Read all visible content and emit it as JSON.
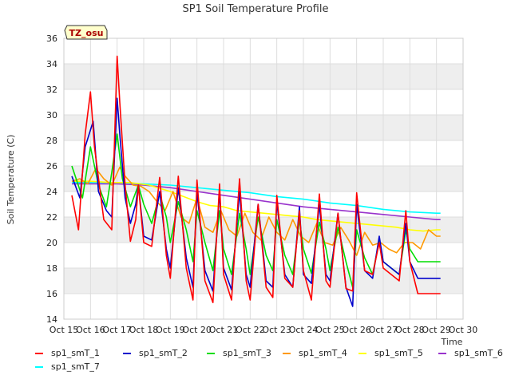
{
  "chart_data": {
    "type": "line",
    "title": "SP1 Soil Temperature Profile",
    "xlabel": "Time",
    "ylabel": "Soil Temperature (C)",
    "ylim": [
      14,
      36
    ],
    "yticks": [
      14,
      16,
      18,
      20,
      22,
      24,
      26,
      28,
      30,
      32,
      34,
      36
    ],
    "xlim": [
      15,
      30
    ],
    "xticks": [
      15,
      16,
      17,
      18,
      19,
      20,
      21,
      22,
      23,
      24,
      25,
      26,
      27,
      28,
      29,
      30
    ],
    "xtick_labels": [
      "Oct 15",
      "Oct 16",
      "Oct 17",
      "Oct 18",
      "Oct 19",
      "Oct 20",
      "Oct 21",
      "Oct 22",
      "Oct 23",
      "Oct 24",
      "Oct 25",
      "Oct 26",
      "Oct 27",
      "Oct 28",
      "Oct 29",
      "Oct 30"
    ],
    "annotation": "TZ_osu",
    "series": [
      {
        "name": "sp1_smT_1",
        "color": "#ff0000",
        "x": [
          15.3,
          15.55,
          15.8,
          16.0,
          16.15,
          16.5,
          16.8,
          17.0,
          17.1,
          17.3,
          17.5,
          17.7,
          17.8,
          18.0,
          18.3,
          18.6,
          18.85,
          19.0,
          19.3,
          19.6,
          19.85,
          20.0,
          20.3,
          20.6,
          20.85,
          21.0,
          21.3,
          21.6,
          21.85,
          22.0,
          22.3,
          22.6,
          22.85,
          23.0,
          23.3,
          23.6,
          23.85,
          24.0,
          24.3,
          24.6,
          24.85,
          25.0,
          25.3,
          25.6,
          25.85,
          26.0,
          26.3,
          26.6,
          26.85,
          27.0,
          27.3,
          27.6,
          27.85,
          28.0,
          28.3,
          28.6,
          28.85,
          29.0,
          29.15
        ],
        "y": [
          23.7,
          21.0,
          28.5,
          31.8,
          27.5,
          21.8,
          21.0,
          34.6,
          31.0,
          24.5,
          20.1,
          21.8,
          24.5,
          20.0,
          19.7,
          25.1,
          19.0,
          17.2,
          25.2,
          18.0,
          15.5,
          24.9,
          17.0,
          15.3,
          24.6,
          17.5,
          15.5,
          25.0,
          17.0,
          15.5,
          23.0,
          16.5,
          15.7,
          23.7,
          17.2,
          16.5,
          22.5,
          17.8,
          15.5,
          23.8,
          17.0,
          16.5,
          22.3,
          16.4,
          16.2,
          23.9,
          17.8,
          17.5,
          20.0,
          18.0,
          17.5,
          17.0,
          22.5,
          18.5,
          16.0,
          16.0,
          16.0,
          16.0,
          16.0
        ]
      },
      {
        "name": "sp1_smT_2",
        "color": "#0000cc",
        "x": [
          15.3,
          15.6,
          15.8,
          16.1,
          16.3,
          16.6,
          16.8,
          17.0,
          17.1,
          17.3,
          17.5,
          17.7,
          17.8,
          18.0,
          18.3,
          18.6,
          18.85,
          19.0,
          19.3,
          19.6,
          19.85,
          20.0,
          20.3,
          20.6,
          20.85,
          21.0,
          21.3,
          21.6,
          21.85,
          22.0,
          22.3,
          22.6,
          22.85,
          23.0,
          23.3,
          23.6,
          23.85,
          24.0,
          24.3,
          24.6,
          24.85,
          25.0,
          25.3,
          25.6,
          25.85,
          26.0,
          26.3,
          26.6,
          26.85,
          27.0,
          27.3,
          27.6,
          27.85,
          28.0,
          28.3,
          28.6,
          28.85,
          29.0,
          29.15
        ],
        "y": [
          25.2,
          23.5,
          27.5,
          29.5,
          24.0,
          22.5,
          22.0,
          31.3,
          28.5,
          23.5,
          21.5,
          23.0,
          24.5,
          20.5,
          20.2,
          24.0,
          19.5,
          18.0,
          24.3,
          18.8,
          16.5,
          24.0,
          17.8,
          16.2,
          24.0,
          18.0,
          16.3,
          24.0,
          17.5,
          16.5,
          23.0,
          17.0,
          16.5,
          23.2,
          17.5,
          16.5,
          22.8,
          17.5,
          16.8,
          23.0,
          17.5,
          17.0,
          22.3,
          16.5,
          15.0,
          23.0,
          17.8,
          17.2,
          20.5,
          18.5,
          18.0,
          17.5,
          21.5,
          18.5,
          17.2,
          17.2,
          17.2,
          17.2,
          17.2
        ]
      },
      {
        "name": "sp1_smT_3",
        "color": "#00dd00",
        "x": [
          15.3,
          15.7,
          16.0,
          16.3,
          16.6,
          16.8,
          17.0,
          17.2,
          17.5,
          17.8,
          18.0,
          18.3,
          18.6,
          18.85,
          19.0,
          19.3,
          19.6,
          19.85,
          20.0,
          20.3,
          20.6,
          20.85,
          21.0,
          21.3,
          21.6,
          21.85,
          22.0,
          22.3,
          22.6,
          22.85,
          23.0,
          23.3,
          23.6,
          23.85,
          24.0,
          24.3,
          24.6,
          24.85,
          25.0,
          25.3,
          25.6,
          25.85,
          26.0,
          26.3,
          26.6,
          26.85,
          27.0,
          27.3,
          27.6,
          27.85,
          28.0,
          28.3,
          28.6,
          28.85,
          29.0,
          29.15
        ],
        "y": [
          26.0,
          23.5,
          27.5,
          24.5,
          22.8,
          25.5,
          28.5,
          25.0,
          22.8,
          24.5,
          23.0,
          21.5,
          23.8,
          22.0,
          20.0,
          23.2,
          21.0,
          18.5,
          22.5,
          20.0,
          17.8,
          22.5,
          19.5,
          17.5,
          22.3,
          19.5,
          17.5,
          22.0,
          19.0,
          17.8,
          21.8,
          19.0,
          17.5,
          21.8,
          19.5,
          17.6,
          21.6,
          19.5,
          17.8,
          21.2,
          18.5,
          16.5,
          21.0,
          18.8,
          17.5,
          20.2,
          18.5,
          18.0,
          17.5,
          21.0,
          19.5,
          18.5,
          18.5,
          18.5,
          18.5,
          18.5
        ]
      },
      {
        "name": "sp1_smT_4",
        "color": "#ff9900",
        "x": [
          15.3,
          15.6,
          15.9,
          16.2,
          16.5,
          16.8,
          17.1,
          17.3,
          17.6,
          17.9,
          18.2,
          18.5,
          18.8,
          19.1,
          19.4,
          19.7,
          20.0,
          20.3,
          20.6,
          20.9,
          21.2,
          21.5,
          21.8,
          22.1,
          22.4,
          22.7,
          23.0,
          23.3,
          23.6,
          23.9,
          24.2,
          24.5,
          24.8,
          25.1,
          25.4,
          25.7,
          26.0,
          26.3,
          26.6,
          26.9,
          27.2,
          27.5,
          27.8,
          28.1,
          28.4,
          28.7,
          29.0,
          29.15
        ],
        "y": [
          24.8,
          25.0,
          24.6,
          25.8,
          25.0,
          24.5,
          25.9,
          25.2,
          24.5,
          24.4,
          24.0,
          23.2,
          22.5,
          24.0,
          22.0,
          21.5,
          23.5,
          21.2,
          20.8,
          22.5,
          21.0,
          20.5,
          22.3,
          20.8,
          20.2,
          22.0,
          20.8,
          20.2,
          21.8,
          20.5,
          20.0,
          21.5,
          20.0,
          19.8,
          21.2,
          20.2,
          19.0,
          20.8,
          19.8,
          20.0,
          19.5,
          19.2,
          20.0,
          20.0,
          19.5,
          21.0,
          20.5,
          20.5
        ]
      },
      {
        "name": "sp1_smT_5",
        "color": "#ffff00",
        "x": [
          15.3,
          16.0,
          16.8,
          17.5,
          18.2,
          19.0,
          19.5,
          20.0,
          20.5,
          21.0,
          21.5,
          22.0,
          22.5,
          23.0,
          23.5,
          24.0,
          24.5,
          25.0,
          25.5,
          26.0,
          26.5,
          27.0,
          27.5,
          28.0,
          28.5,
          29.0,
          29.15
        ],
        "y": [
          24.8,
          24.8,
          24.7,
          24.7,
          24.5,
          24.0,
          23.6,
          23.2,
          22.9,
          22.8,
          22.5,
          22.4,
          22.3,
          22.2,
          22.1,
          22.0,
          21.8,
          21.7,
          21.6,
          21.5,
          21.4,
          21.3,
          21.2,
          21.0,
          20.9,
          21.0,
          21.0
        ]
      },
      {
        "name": "sp1_smT_6",
        "color": "#9933cc",
        "x": [
          15.3,
          16.0,
          17.0,
          18.0,
          19.0,
          20.0,
          21.0,
          22.0,
          23.0,
          24.0,
          25.0,
          26.0,
          27.0,
          28.0,
          29.0,
          29.15
        ],
        "y": [
          24.6,
          24.6,
          24.6,
          24.5,
          24.3,
          24.0,
          23.7,
          23.4,
          23.1,
          22.8,
          22.6,
          22.4,
          22.2,
          22.0,
          21.8,
          21.8
        ]
      },
      {
        "name": "sp1_smT_7",
        "color": "#00ffff",
        "x": [
          15.3,
          16.0,
          17.0,
          18.0,
          19.0,
          20.0,
          21.0,
          22.0,
          23.0,
          24.0,
          25.0,
          26.0,
          27.0,
          28.0,
          29.0,
          29.15
        ],
        "y": [
          24.7,
          24.7,
          24.7,
          24.6,
          24.5,
          24.3,
          24.1,
          23.9,
          23.6,
          23.4,
          23.1,
          22.9,
          22.6,
          22.4,
          22.3,
          22.3
        ]
      }
    ]
  }
}
